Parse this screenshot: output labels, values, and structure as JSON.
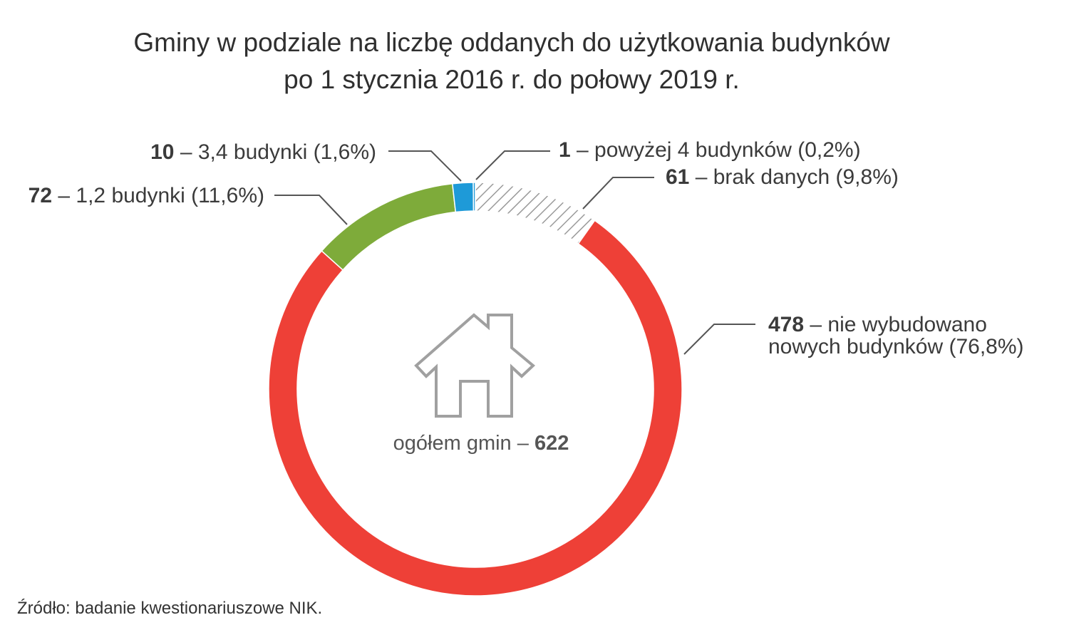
{
  "chart_data": {
    "type": "pie",
    "variant": "donut",
    "title_lines": [
      "Gminy w podziale na liczbę oddanych do użytkowania budynków",
      "po 1 stycznia 2016 r. do połowy 2019 r."
    ],
    "total": {
      "label": "ogółem gmin – ",
      "value": "622"
    },
    "slices": [
      {
        "id": "brak",
        "value": 61,
        "count": "61",
        "text": " – brak danych (9,8%)",
        "color": "#cfcfcf",
        "pattern": "hatch"
      },
      {
        "id": "nie",
        "value": 478,
        "count": "478",
        "text_lines": [
          " – nie wybudowano",
          "nowych budynków (76,8%)"
        ],
        "color": "#ee4037"
      },
      {
        "id": "b12",
        "value": 72,
        "count": "72",
        "text": " – 1,2 budynki (11,6%)",
        "color": "#7eab3a"
      },
      {
        "id": "b34",
        "value": 10,
        "count": "10",
        "text": " – 3,4 budynki (1,6%)",
        "color": "#1e9ad8"
      },
      {
        "id": "b4p",
        "value": 1,
        "count": "1",
        "text": " – powyżej 4 budynków (0,2%)",
        "color": "#1e9ad8"
      }
    ],
    "source": "Źródło: badanie kwestionariuszowe NIK.",
    "icon": "house-icon"
  }
}
